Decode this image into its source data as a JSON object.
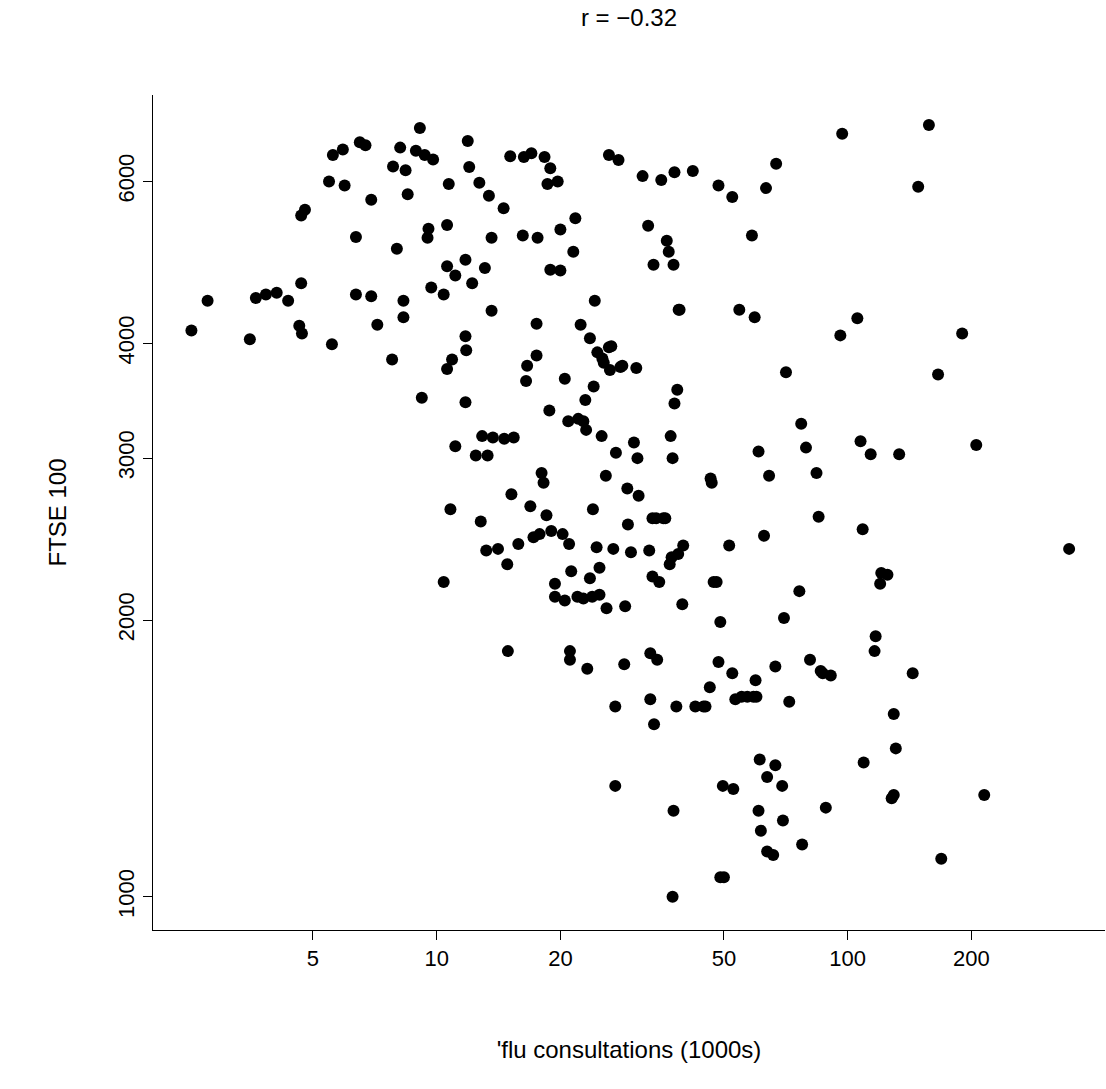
{
  "chart_data": {
    "type": "scatter",
    "title": "r = −0.32",
    "x_label": "'flu consultations (1000s)",
    "y_label": "FTSE 100",
    "log": true,
    "grid": false,
    "color": "#000000",
    "marker": "circle",
    "xlim": [
      2.04,
      423
    ],
    "ylim": [
      920,
      7450
    ],
    "xticks": [
      5,
      10,
      20,
      50,
      100,
      200
    ],
    "yticks": [
      1000,
      2000,
      3000,
      4000,
      6000
    ],
    "x": [
      2.53,
      2.77,
      3.51,
      3.63,
      3.84,
      4.08,
      4.35,
      4.63,
      4.68,
      4.7,
      4.68,
      4.78,
      5.47,
      5.56,
      5.59,
      5.91,
      6.36,
      6.36,
      6.5,
      6.71,
      5.97,
      6.93,
      6.93,
      7.17,
      7.79,
      7.83,
      8.0,
      8.15,
      8.3,
      8.3,
      8.4,
      8.5,
      8.9,
      9.1,
      9.2,
      9.35,
      9.55,
      9.5,
      9.8,
      9.7,
      10.4,
      10.6,
      10.6,
      10.7,
      10.6,
      10.8,
      10.4,
      10.9,
      11.1,
      11.1,
      11.75,
      11.8,
      11.9,
      11.75,
      12,
      11.75,
      12.2,
      12.45,
      12.7,
      12.9,
      12.8,
      13.1,
      13.2,
      13.3,
      13.4,
      13.6,
      13.6,
      13.7,
      14.1,
      14.55,
      14.6,
      14.85,
      14.9,
      15.1,
      15.2,
      15.4,
      15.8,
      16.2,
      16.3,
      16.6,
      16.5,
      16.9,
      17.0,
      17.2,
      17.5,
      17.5,
      17.6,
      17.8,
      18.0,
      18.2,
      18.3,
      18.5,
      18.6,
      18.9,
      18.8,
      18.9,
      19.0,
      19.4,
      19.4,
      19.7,
      20,
      20,
      20.25,
      20.5,
      20.5,
      20.9,
      21,
      21.1,
      21.1,
      21.25,
      21.5,
      21.75,
      22,
      22.1,
      22.4,
      22.75,
      22.75,
      23,
      23.1,
      23.25,
      23.6,
      23.6,
      23.9,
      24,
      24.1,
      24.25,
      24.5,
      24.6,
      24.9,
      24.9,
      25.2,
      25.3,
      25.5,
      25.9,
      25.8,
      26.25,
      26.25,
      26.4,
      26.6,
      26.9,
      27.2,
      27.3,
      27.2,
      27.7,
      28,
      28.3,
      28.6,
      28.75,
      29.1,
      29.2,
      29.7,
      30.2,
      30.6,
      30.8,
      31,
      31.7,
      32.7,
      33.1,
      32.9,
      33.1,
      33.5,
      33.5,
      33.7,
      33.8,
      34.2,
      34.4,
      34.8,
      35.2,
      35.6,
      36,
      36.3,
      36.7,
      36.9,
      37.1,
      37.3,
      37.5,
      37.7,
      37.9,
      37.9,
      37.5,
      37.7,
      38.3,
      38.5,
      38.7,
      38.8,
      39,
      39.8,
      39.6,
      42,
      42.6,
      44.6,
      45.1,
      46.2,
      46.4,
      46.7,
      47.2,
      48,
      48.5,
      49,
      48.5,
      49,
      49.7,
      50,
      51.5,
      52.4,
      52.4,
      52.7,
      53.3,
      55.2,
      54.5,
      57,
      58.5,
      59,
      59.4,
      59.7,
      60,
      60.7,
      61.1,
      60.7,
      61.5,
      62.6,
      63.3,
      63.7,
      63.7,
      64.4,
      65.9,
      66.7,
      67,
      66.7,
      70,
      69.3,
      69.6,
      70.8,
      72.1,
      76.3,
      77.1,
      77.5,
      79.2,
      81,
      84,
      85,
      86,
      87,
      88.5,
      91,
      96,
      97,
      105.6,
      107.5,
      108.8,
      109.4,
      113.8,
      116.3,
      117,
      120,
      120.75,
      125,
      128,
      129.5,
      129.5,
      131,
      133.5,
      144,
      148.5,
      157.7,
      166,
      169,
      190,
      205.6,
      215,
      346
    ],
    "values": [
      4130,
      4450,
      4040,
      4480,
      4520,
      4540,
      4450,
      4180,
      4650,
      4100,
      5510,
      5590,
      6000,
      3990,
      6410,
      6500,
      5220,
      4520,
      6620,
      6570,
      5940,
      5730,
      4500,
      4190,
      3840,
      6230,
      5070,
      6530,
      4450,
      4270,
      6170,
      5810,
      6480,
      6860,
      3490,
      6410,
      5330,
      5210,
      6340,
      4600,
      4520,
      5380,
      3750,
      5960,
      4850,
      2640,
      2200,
      3840,
      4740,
      3090,
      4070,
      3930,
      6640,
      4930,
      6220,
      3450,
      4650,
      3020,
      5980,
      3170,
      2560,
      4830,
      2380,
      3020,
      5790,
      5210,
      4340,
      3160,
      2390,
      5610,
      3150,
      2300,
      1850,
      6390,
      2740,
      3160,
      2420,
      5240,
      6380,
      3780,
      3640,
      2660,
      6440,
      2460,
      4200,
      3880,
      5210,
      2480,
      2890,
      2820,
      6380,
      2600,
      5960,
      6200,
      3380,
      4810,
      2500,
      2120,
      2190,
      6000,
      5320,
      4800,
      2480,
      2100,
      3660,
      3290,
      2420,
      1850,
      1810,
      2260,
      5030,
      5470,
      2120,
      3310,
      4190,
      3290,
      2110,
      3470,
      3220,
      1770,
      2220,
      4050,
      2120,
      2640,
      3590,
      4450,
      2400,
      3910,
      2130,
      2280,
      3170,
      3850,
      3810,
      2060,
      2870,
      6410,
      3960,
      3740,
      3970,
      2390,
      1610,
      3040,
      1320,
      6330,
      3770,
      3780,
      1790,
      2070,
      2780,
      2540,
      2370,
      3120,
      3760,
      3000,
      2730,
      6080,
      5370,
      1840,
      2380,
      1640,
      2230,
      2580,
      4870,
      1540,
      2580,
      1810,
      2200,
      6020,
      2580,
      2580,
      5170,
      5030,
      2300,
      3170,
      2340,
      3000,
      4870,
      6140,
      3440,
      1000,
      1240,
      1610,
      3560,
      2360,
      4350,
      4350,
      2410,
      2080,
      6160,
      1610,
      1610,
      1610,
      1690,
      2850,
      2820,
      2200,
      2200,
      5940,
      1990,
      1800,
      1050,
      1320,
      1050,
      2410,
      1750,
      5770,
      1310,
      1640,
      1650,
      4350,
      1650,
      5240,
      1650,
      4270,
      1720,
      1650,
      1240,
      1410,
      3050,
      1180,
      2470,
      5900,
      1120,
      1350,
      2870,
      1110,
      1780,
      6270,
      1390,
      2010,
      1320,
      1210,
      3720,
      1630,
      2150,
      3270,
      1140,
      3080,
      1810,
      2890,
      2590,
      1760,
      1750,
      1250,
      1740,
      4080,
      6760,
      4260,
      3130,
      2510,
      1400,
      3030,
      1850,
      1920,
      2190,
      2250,
      2240,
      1280,
      1290,
      1580,
      1450,
      3030,
      1750,
      5920,
      6910,
      3700,
      1100,
      4100,
      3100,
      1290,
      2390
    ]
  }
}
